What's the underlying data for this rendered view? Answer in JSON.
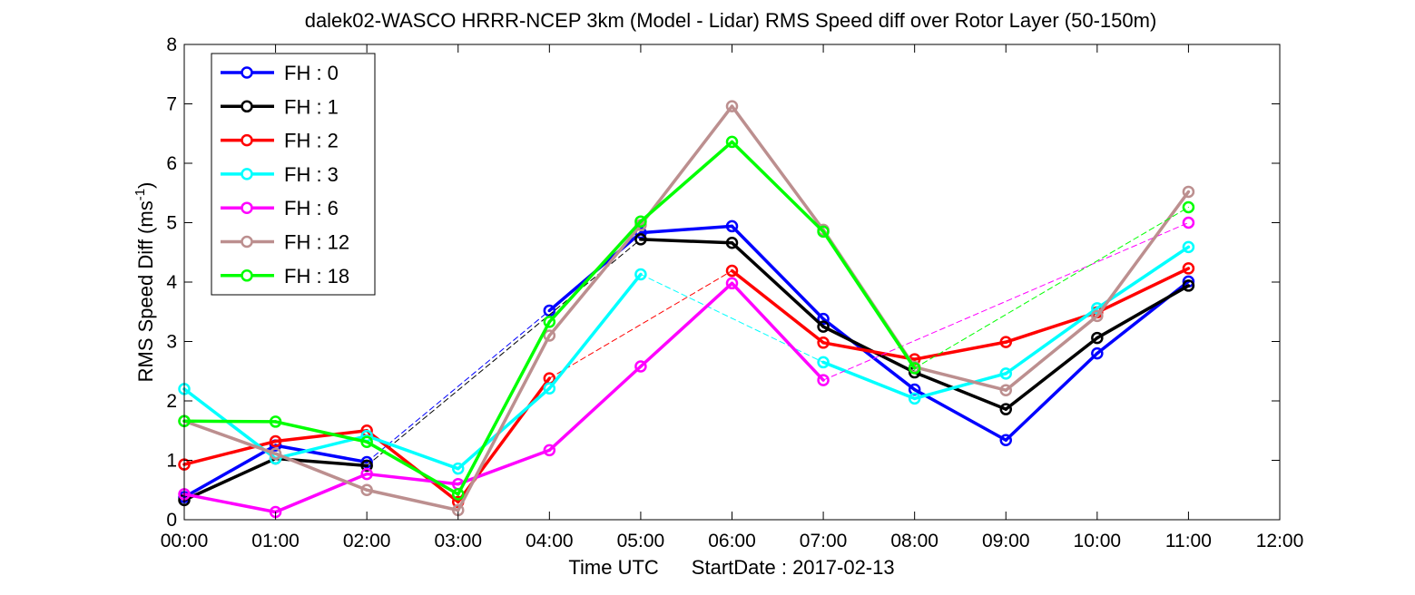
{
  "chart_data": {
    "type": "line",
    "title": "dalek02-WASCO HRRR-NCEP 3km (Model - Lidar) RMS Speed diff over Rotor Layer (50-150m)",
    "xlabel": "Time UTC",
    "xlabel_extra": "StartDate : 2017-02-13",
    "ylabel_main": "RMS Speed Diff (ms",
    "ylabel_sup": "-1",
    "ylabel_close": ")",
    "x_ticks": [
      "00:00",
      "01:00",
      "02:00",
      "03:00",
      "04:00",
      "05:00",
      "06:00",
      "07:00",
      "08:00",
      "09:00",
      "10:00",
      "11:00",
      "12:00"
    ],
    "y_ticks": [
      "0",
      "1",
      "2",
      "3",
      "4",
      "5",
      "6",
      "7",
      "8"
    ],
    "xlim": [
      0,
      12
    ],
    "ylim": [
      0,
      8
    ],
    "grid": false,
    "legend_position": "top-left",
    "series": [
      {
        "name": "FH : 0",
        "color": "#0000ff",
        "x": [
          0,
          1,
          2,
          4,
          5,
          6,
          7,
          8,
          9,
          10,
          11
        ],
        "y": [
          0.38,
          1.25,
          0.97,
          3.52,
          4.83,
          4.94,
          3.38,
          2.19,
          1.34,
          2.8,
          4.01
        ]
      },
      {
        "name": "FH : 1",
        "color": "#000000",
        "x": [
          0,
          1,
          2,
          5,
          6,
          7,
          8,
          9,
          10,
          11
        ],
        "y": [
          0.33,
          1.03,
          0.91,
          4.72,
          4.66,
          3.25,
          2.48,
          1.86,
          3.06,
          3.94
        ]
      },
      {
        "name": "FH : 2",
        "color": "#ff0000",
        "x": [
          0,
          1,
          2,
          3,
          4,
          6,
          7,
          8,
          9,
          10,
          11
        ],
        "y": [
          0.93,
          1.32,
          1.5,
          0.3,
          2.38,
          4.19,
          2.98,
          2.7,
          2.99,
          3.49,
          4.23
        ]
      },
      {
        "name": "FH : 3",
        "color": "#00ffff",
        "x": [
          0,
          1,
          2,
          3,
          4,
          5,
          7,
          8,
          9,
          10,
          11
        ],
        "y": [
          2.2,
          1.03,
          1.41,
          0.86,
          2.21,
          4.13,
          2.65,
          2.04,
          2.46,
          3.56,
          4.59
        ]
      },
      {
        "name": "FH : 6",
        "color": "#ff00ff",
        "x": [
          0,
          1,
          2,
          3,
          4,
          5,
          6,
          7,
          11
        ],
        "y": [
          0.43,
          0.13,
          0.77,
          0.6,
          1.17,
          2.58,
          3.98,
          2.35,
          5.0
        ]
      },
      {
        "name": "FH : 12",
        "color": "#bc8f8f",
        "x": [
          0,
          1,
          2,
          3,
          4,
          5,
          6,
          7,
          8,
          9,
          10,
          11
        ],
        "y": [
          1.66,
          1.11,
          0.5,
          0.16,
          3.1,
          4.96,
          6.96,
          4.88,
          2.57,
          2.18,
          3.43,
          5.52
        ]
      },
      {
        "name": "FH : 18",
        "color": "#00ff00",
        "x": [
          0,
          1,
          2,
          3,
          4,
          5,
          6,
          7,
          8,
          11
        ],
        "y": [
          1.66,
          1.65,
          1.31,
          0.43,
          3.33,
          5.02,
          6.36,
          4.85,
          2.55,
          5.26
        ]
      }
    ]
  }
}
